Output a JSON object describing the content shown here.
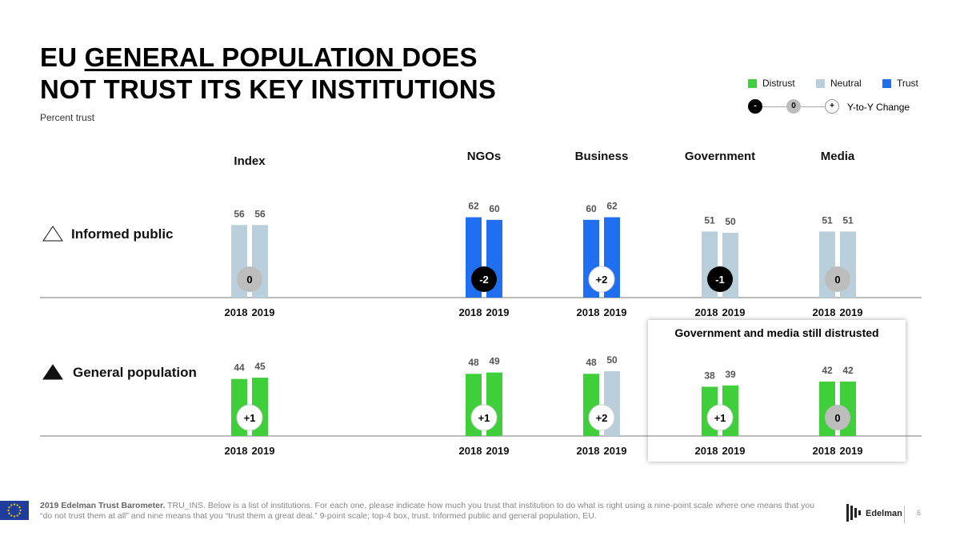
{
  "slide": {
    "title_part1": "EU ",
    "title_part2": "GENERAL POPULATION ",
    "title_part3": "DOES",
    "title_line2": "NOT TRUST ITS KEY INSTITUTIONS",
    "subtitle": "Percent trust",
    "callout": "Government and media still distrusted",
    "footer_bold": "2019 Edelman Trust Barometer.",
    "footer_text": " TRU_INS. Below is a list of institutions. For each one, please indicate how much you trust that institution to do what is right using a nine-point scale where one means that you “do not trust them at all” and nine means that you “trust them a great deal.” 9-point scale; top-4 box, trust. Informed public and general population, EU.",
    "logo_text": "Edelman",
    "page_number": "6"
  },
  "legend": {
    "items": [
      {
        "label": "Distrust",
        "color": "#3fcf3a"
      },
      {
        "label": "Neutral",
        "color": "#b9cfdb"
      },
      {
        "label": "Trust",
        "color": "#1f6ff0"
      }
    ],
    "change_minus": "-",
    "change_zero": "0",
    "change_plus": "+",
    "change_label": "Y-to-Y Change"
  },
  "chart_data": {
    "type": "bar",
    "categories": [
      "Index",
      "NGOs",
      "Business",
      "Government",
      "Media"
    ],
    "years": [
      "2018",
      "2019"
    ],
    "rows": [
      {
        "name": "Informed public",
        "values": [
          [
            56,
            56
          ],
          [
            62,
            60
          ],
          [
            60,
            62
          ],
          [
            51,
            50
          ],
          [
            51,
            51
          ]
        ],
        "colors": [
          [
            "#b9cfdb",
            "#b9cfdb"
          ],
          [
            "#1f6ff0",
            "#1f6ff0"
          ],
          [
            "#1f6ff0",
            "#1f6ff0"
          ],
          [
            "#b9cfdb",
            "#b9cfdb"
          ],
          [
            "#b9cfdb",
            "#b9cfdb"
          ]
        ],
        "changes": [
          "0",
          "-2",
          "+2",
          "-1",
          "0"
        ]
      },
      {
        "name": "General population",
        "values": [
          [
            44,
            45
          ],
          [
            48,
            49
          ],
          [
            48,
            50
          ],
          [
            38,
            39
          ],
          [
            42,
            42
          ]
        ],
        "colors": [
          [
            "#3fcf3a",
            "#3fcf3a"
          ],
          [
            "#3fcf3a",
            "#3fcf3a"
          ],
          [
            "#3fcf3a",
            "#b9cfdb"
          ],
          [
            "#3fcf3a",
            "#3fcf3a"
          ],
          [
            "#3fcf3a",
            "#3fcf3a"
          ]
        ],
        "changes": [
          "+1",
          "+1",
          "+2",
          "+1",
          "0"
        ]
      }
    ],
    "ylim": [
      0,
      100
    ],
    "legend_position": "top-right"
  }
}
